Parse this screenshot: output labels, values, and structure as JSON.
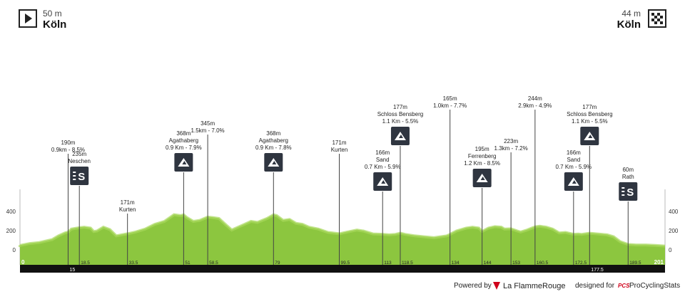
{
  "start": {
    "altitude": "50 m",
    "city": "Köln"
  },
  "finish": {
    "altitude": "44 m",
    "city": "Köln"
  },
  "footer": {
    "powered_by": "Powered by",
    "lfr_brand": "La FlammeRouge",
    "designed_for": "designed for",
    "pcs_mark": "PCS",
    "pcs_brand": "ProCyclingStats"
  },
  "colors": {
    "profile": "#8cc63f",
    "profile_light": "#a8d95c",
    "bar": "#111111",
    "badge": "#2f3540"
  },
  "chart_data": {
    "type": "area",
    "y_ticks": [
      "400",
      "200",
      "0"
    ],
    "y_tick_values": [
      400,
      200,
      0
    ],
    "ylim": [
      -100,
      800
    ],
    "xlim": [
      0,
      201
    ],
    "km_labels": [
      {
        "km": 0,
        "label": "0"
      },
      {
        "km": 15,
        "label": "15"
      },
      {
        "km": 18.5,
        "label": "18.5"
      },
      {
        "km": 33.5,
        "label": "33.5"
      },
      {
        "km": 51,
        "label": "51"
      },
      {
        "km": 58.5,
        "label": "58.5"
      },
      {
        "km": 79,
        "label": "79"
      },
      {
        "km": 99.5,
        "label": "99.5"
      },
      {
        "km": 113,
        "label": "113"
      },
      {
        "km": 118.5,
        "label": "118.5"
      },
      {
        "km": 134,
        "label": "134"
      },
      {
        "km": 144,
        "label": "144"
      },
      {
        "km": 153,
        "label": "153"
      },
      {
        "km": 160.5,
        "label": "160.5"
      },
      {
        "km": 172.5,
        "label": "172.5"
      },
      {
        "km": 177.5,
        "label": "177.5"
      },
      {
        "km": 189.5,
        "label": "189.5"
      },
      {
        "km": 201,
        "label": "201"
      }
    ],
    "profile": [
      [
        0,
        50
      ],
      [
        3,
        70
      ],
      [
        6,
        80
      ],
      [
        10,
        110
      ],
      [
        12,
        150
      ],
      [
        14,
        180
      ],
      [
        15,
        190
      ],
      [
        16,
        220
      ],
      [
        18.5,
        235
      ],
      [
        20,
        240
      ],
      [
        22,
        230
      ],
      [
        23,
        195
      ],
      [
        24,
        200
      ],
      [
        26,
        240
      ],
      [
        28,
        215
      ],
      [
        30,
        150
      ],
      [
        33.5,
        171
      ],
      [
        36,
        190
      ],
      [
        39,
        220
      ],
      [
        42,
        270
      ],
      [
        45,
        300
      ],
      [
        48,
        370
      ],
      [
        50,
        360
      ],
      [
        51,
        368
      ],
      [
        52,
        340
      ],
      [
        54,
        300
      ],
      [
        56,
        310
      ],
      [
        58.5,
        345
      ],
      [
        60,
        340
      ],
      [
        62,
        330
      ],
      [
        64,
        270
      ],
      [
        66,
        210
      ],
      [
        68,
        240
      ],
      [
        70,
        270
      ],
      [
        72,
        300
      ],
      [
        74,
        290
      ],
      [
        77,
        330
      ],
      [
        79,
        368
      ],
      [
        80,
        360
      ],
      [
        82,
        310
      ],
      [
        84,
        320
      ],
      [
        86,
        280
      ],
      [
        88,
        270
      ],
      [
        90,
        240
      ],
      [
        93,
        220
      ],
      [
        96,
        185
      ],
      [
        99.5,
        171
      ],
      [
        102,
        190
      ],
      [
        105,
        210
      ],
      [
        107,
        200
      ],
      [
        110,
        170
      ],
      [
        113,
        166
      ],
      [
        115,
        160
      ],
      [
        117,
        165
      ],
      [
        118.5,
        177
      ],
      [
        120,
        165
      ],
      [
        123,
        150
      ],
      [
        126,
        140
      ],
      [
        129,
        130
      ],
      [
        131,
        140
      ],
      [
        133,
        150
      ],
      [
        134,
        165
      ],
      [
        136,
        200
      ],
      [
        139,
        230
      ],
      [
        141,
        240
      ],
      [
        143,
        230
      ],
      [
        144,
        195
      ],
      [
        146,
        230
      ],
      [
        148,
        245
      ],
      [
        150,
        240
      ],
      [
        151,
        220
      ],
      [
        153,
        223
      ],
      [
        155,
        200
      ],
      [
        156,
        190
      ],
      [
        158,
        210
      ],
      [
        160.5,
        244
      ],
      [
        162,
        250
      ],
      [
        164,
        240
      ],
      [
        166,
        220
      ],
      [
        168,
        180
      ],
      [
        170,
        185
      ],
      [
        172.5,
        166
      ],
      [
        174,
        168
      ],
      [
        175,
        165
      ],
      [
        177.5,
        177
      ],
      [
        180,
        170
      ],
      [
        183,
        160
      ],
      [
        185,
        140
      ],
      [
        187,
        90
      ],
      [
        189.5,
        60
      ],
      [
        192,
        55
      ],
      [
        195,
        55
      ],
      [
        198,
        50
      ],
      [
        201,
        44
      ]
    ],
    "markers": [
      {
        "km": 15,
        "label_top": "190m",
        "label_bottom": "0.9km - 8.5%",
        "icon": null,
        "tip_y": 216
      },
      {
        "km": 18.5,
        "label_top": "235m",
        "label_bottom": "Neschen",
        "icon": "sprint",
        "tip_y": 261
      },
      {
        "km": 33.5,
        "label_top": "171m",
        "label_bottom": "Kurten",
        "icon": null,
        "tip_y": 300
      },
      {
        "km": 51,
        "label_top": "368m",
        "name": "Agathaberg",
        "label_bottom": "0.9 Km - 7.9%",
        "icon": "climb",
        "tip_y": 242
      },
      {
        "km": 58.5,
        "label_top": "345m",
        "label_bottom": "1.5km - 7.0%",
        "icon": null,
        "tip_y": 189
      },
      {
        "km": 79,
        "label_top": "368m",
        "name": "Agathaberg",
        "label_bottom": "0.9 Km - 7.8%",
        "icon": "climb",
        "tip_y": 242
      },
      {
        "km": 99.5,
        "label_top": "171m",
        "label_bottom": "Kurten",
        "icon": null,
        "tip_y": 216
      },
      {
        "km": 113,
        "label_top": "166m",
        "name": "Sand",
        "label_bottom": "0.7 Km - 5.9%",
        "icon": "climb",
        "tip_y": 269
      },
      {
        "km": 118.5,
        "label_top": "177m",
        "name": "Schloss Bensberg",
        "label_bottom": "1.1 Km - 5.5%",
        "icon": "climb",
        "tip_y": 205
      },
      {
        "km": 134,
        "label_top": "165m",
        "label_bottom": "1.0km - 7.7%",
        "icon": null,
        "tip_y": 154
      },
      {
        "km": 144,
        "label_top": "195m",
        "name": "Ferrenberg",
        "label_bottom": "1.2 Km - 8.5%",
        "icon": "climb",
        "tip_y": 264
      },
      {
        "km": 153,
        "label_top": "223m",
        "label_bottom": "1.3km - 7.2%",
        "icon": null,
        "tip_y": 214
      },
      {
        "km": 160.5,
        "label_top": "244m",
        "label_bottom": "2.9km - 4.9%",
        "icon": null,
        "tip_y": 154
      },
      {
        "km": 172.5,
        "label_top": "166m",
        "name": "Sand",
        "label_bottom": "0.7 Km - 5.9%",
        "icon": "climb",
        "tip_y": 269
      },
      {
        "km": 177.5,
        "label_top": "177m",
        "name": "Schloss Bensberg",
        "label_bottom": "1.1 Km - 5.5%",
        "icon": "climb",
        "tip_y": 205
      },
      {
        "km": 189.5,
        "label_top": "60m",
        "name": "Rath",
        "label_bottom": null,
        "icon": "sprint",
        "tip_y": 283
      }
    ]
  }
}
